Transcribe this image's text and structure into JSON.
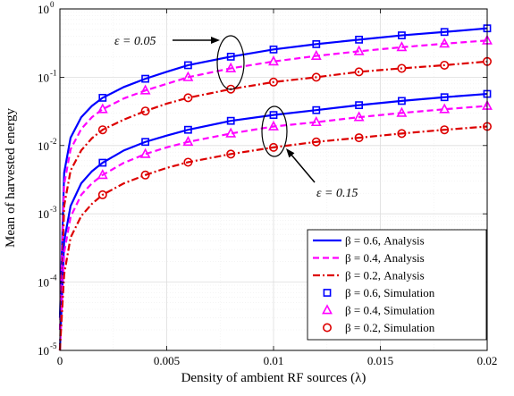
{
  "chart_data": {
    "type": "line",
    "title": "",
    "xlabel": "Density of ambient RF sources (λ)",
    "ylabel": "Mean of harvested energy",
    "xlim": [
      0,
      0.02
    ],
    "ylim": [
      1e-05,
      1
    ],
    "yscale": "log",
    "grid": true,
    "x_ticks": [
      {
        "value": 0,
        "label": "0"
      },
      {
        "value": 0.005,
        "label": "0.005"
      },
      {
        "value": 0.01,
        "label": "0.01"
      },
      {
        "value": 0.015,
        "label": "0.015"
      },
      {
        "value": 0.02,
        "label": "0.02"
      }
    ],
    "y_ticks": [
      {
        "value": 1e-05,
        "base": "10",
        "exp": "-5"
      },
      {
        "value": 0.0001,
        "base": "10",
        "exp": "-4"
      },
      {
        "value": 0.001,
        "base": "10",
        "exp": "-3"
      },
      {
        "value": 0.01,
        "base": "10",
        "exp": "-2"
      },
      {
        "value": 0.1,
        "base": "10",
        "exp": "-1"
      },
      {
        "value": 1,
        "base": "10",
        "exp": "0"
      }
    ],
    "legend_position": "bottom-right",
    "legend": [
      {
        "label": "β = 0.6, Analysis",
        "style": "solid",
        "color": "#0000ff"
      },
      {
        "label": "β = 0.4, Analysis",
        "style": "dashed",
        "color": "#ff00ff"
      },
      {
        "label": "β = 0.2, Analysis",
        "style": "dashdot",
        "color": "#dd0000"
      },
      {
        "label": "β = 0.6, Simulation",
        "marker": "square",
        "color": "#0000ff"
      },
      {
        "label": "β = 0.4, Simulation",
        "marker": "triangle",
        "color": "#ff00ff"
      },
      {
        "label": "β = 0.2, Simulation",
        "marker": "circle",
        "color": "#dd0000"
      }
    ],
    "annotations": [
      {
        "text": "ε = 0.05"
      },
      {
        "text": "ε = 0.15"
      }
    ],
    "analysis_x": [
      0,
      0.0002,
      0.0005,
      0.001,
      0.0015,
      0.002,
      0.003,
      0.004,
      0.005,
      0.006,
      0.008,
      0.01,
      0.012,
      0.014,
      0.016,
      0.018,
      0.02
    ],
    "sim_x": [
      0.002,
      0.004,
      0.006,
      0.008,
      0.01,
      0.012,
      0.014,
      0.016,
      0.018,
      0.02
    ],
    "series": [
      {
        "group": "eps_0.05",
        "beta": "0.6",
        "kind": "analysis",
        "color": "#0000ff",
        "style": "solid",
        "values": [
          3e-05,
          0.004,
          0.013,
          0.026,
          0.038,
          0.05,
          0.072,
          0.095,
          0.12,
          0.15,
          0.2,
          0.255,
          0.305,
          0.355,
          0.41,
          0.46,
          0.52
        ]
      },
      {
        "group": "eps_0.05",
        "beta": "0.4",
        "kind": "analysis",
        "color": "#ff00ff",
        "style": "dashed",
        "values": [
          2e-05,
          0.0027,
          0.0088,
          0.0175,
          0.026,
          0.034,
          0.049,
          0.064,
          0.08,
          0.1,
          0.135,
          0.17,
          0.205,
          0.24,
          0.275,
          0.31,
          0.345
        ]
      },
      {
        "group": "eps_0.05",
        "beta": "0.2",
        "kind": "analysis",
        "color": "#dd0000",
        "style": "dashdot",
        "values": [
          1e-05,
          0.0013,
          0.0043,
          0.0085,
          0.0128,
          0.017,
          0.024,
          0.032,
          0.041,
          0.05,
          0.067,
          0.085,
          0.1,
          0.12,
          0.135,
          0.15,
          0.17
        ]
      },
      {
        "group": "eps_0.15",
        "beta": "0.6",
        "kind": "analysis",
        "color": "#0000ff",
        "style": "solid",
        "values": [
          3e-06,
          0.0004,
          0.0013,
          0.0028,
          0.0042,
          0.0056,
          0.0085,
          0.0113,
          0.014,
          0.017,
          0.023,
          0.028,
          0.033,
          0.039,
          0.045,
          0.051,
          0.057
        ]
      },
      {
        "group": "eps_0.15",
        "beta": "0.4",
        "kind": "analysis",
        "color": "#ff00ff",
        "style": "dashed",
        "values": [
          2e-06,
          0.00027,
          0.0009,
          0.0019,
          0.0028,
          0.0037,
          0.0056,
          0.0075,
          0.0094,
          0.0113,
          0.015,
          0.019,
          0.022,
          0.026,
          0.03,
          0.034,
          0.038
        ]
      },
      {
        "group": "eps_0.15",
        "beta": "0.2",
        "kind": "analysis",
        "color": "#dd0000",
        "style": "dashdot",
        "values": [
          9e-07,
          0.00013,
          0.00045,
          0.00093,
          0.0014,
          0.0019,
          0.0028,
          0.0037,
          0.0047,
          0.0057,
          0.0075,
          0.0094,
          0.0113,
          0.013,
          0.015,
          0.017,
          0.019
        ]
      },
      {
        "group": "eps_0.05",
        "beta": "0.6",
        "kind": "simulation",
        "marker": "square",
        "color": "#0000ff",
        "values": [
          0.05,
          0.095,
          0.15,
          0.2,
          0.255,
          0.305,
          0.355,
          0.41,
          0.46,
          0.52
        ]
      },
      {
        "group": "eps_0.05",
        "beta": "0.4",
        "kind": "simulation",
        "marker": "triangle",
        "color": "#ff00ff",
        "values": [
          0.034,
          0.064,
          0.1,
          0.135,
          0.17,
          0.205,
          0.24,
          0.275,
          0.31,
          0.345
        ]
      },
      {
        "group": "eps_0.05",
        "beta": "0.2",
        "kind": "simulation",
        "marker": "circle",
        "color": "#dd0000",
        "values": [
          0.017,
          0.032,
          0.05,
          0.067,
          0.085,
          0.1,
          0.12,
          0.135,
          0.15,
          0.17
        ]
      },
      {
        "group": "eps_0.15",
        "beta": "0.6",
        "kind": "simulation",
        "marker": "square",
        "color": "#0000ff",
        "values": [
          0.0056,
          0.0113,
          0.017,
          0.023,
          0.028,
          0.033,
          0.039,
          0.045,
          0.051,
          0.057
        ]
      },
      {
        "group": "eps_0.15",
        "beta": "0.4",
        "kind": "simulation",
        "marker": "triangle",
        "color": "#ff00ff",
        "values": [
          0.0037,
          0.0075,
          0.0113,
          0.015,
          0.019,
          0.022,
          0.026,
          0.03,
          0.034,
          0.038
        ]
      },
      {
        "group": "eps_0.15",
        "beta": "0.2",
        "kind": "simulation",
        "marker": "circle",
        "color": "#dd0000",
        "values": [
          0.0019,
          0.0037,
          0.0057,
          0.0075,
          0.0094,
          0.0113,
          0.013,
          0.015,
          0.017,
          0.019
        ]
      }
    ]
  }
}
